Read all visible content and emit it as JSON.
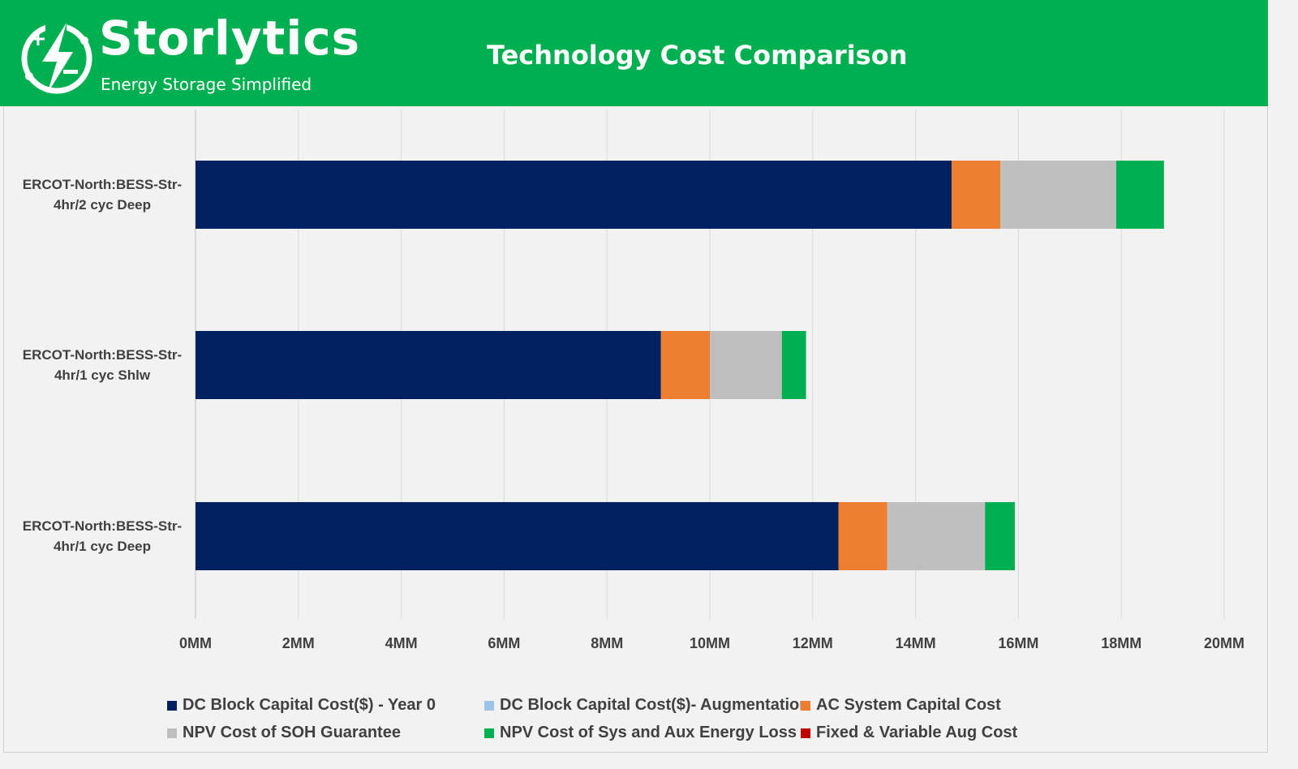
{
  "header": {
    "brand": "Storlytics",
    "tagline": "Energy Storage Simplified",
    "title": "Technology Cost Comparison"
  },
  "colors": {
    "header_bg": "#00b050",
    "plot_bg": "#f2f2f2",
    "grid": "#d9d9d9"
  },
  "chart_data": {
    "type": "bar",
    "orientation": "horizontal",
    "stacked": true,
    "title": "Technology Cost Comparison",
    "categories": [
      "ERCOT-North:BESS-Str-4hr/2 cyc Deep",
      "ERCOT-North:BESS-Str-4hr/1 cyc Shlw",
      "ERCOT-North:BESS-Str-4hr/1 cyc Deep"
    ],
    "category_lines": [
      [
        "ERCOT-North:BESS-Str-",
        "4hr/2 cyc Deep"
      ],
      [
        "ERCOT-North:BESS-Str-",
        "4hr/1 cyc Shlw"
      ],
      [
        "ERCOT-North:BESS-Str-",
        "4hr/1 cyc Deep"
      ]
    ],
    "xlim": [
      0,
      20
    ],
    "x_unit": "MM",
    "x_ticks": [
      0,
      2,
      4,
      6,
      8,
      10,
      12,
      14,
      16,
      18,
      20
    ],
    "x_tick_labels": [
      "0MM",
      "2MM",
      "4MM",
      "6MM",
      "8MM",
      "10MM",
      "12MM",
      "14MM",
      "16MM",
      "18MM",
      "20MM"
    ],
    "grid": true,
    "legend_position": "bottom",
    "series": [
      {
        "name": "DC Block Capital Cost($) - Year 0",
        "color": "#002060",
        "values": [
          14.7,
          9.05,
          12.5
        ]
      },
      {
        "name": "DC Block Capital Cost($)- Augmentation",
        "color": "#9dc3e6",
        "values": [
          0,
          0,
          0
        ]
      },
      {
        "name": "AC System Capital Cost",
        "color": "#ed7d31",
        "values": [
          0.95,
          0.95,
          0.95
        ]
      },
      {
        "name": "NPV Cost of SOH Guarantee",
        "color": "#bfbfbf",
        "values": [
          2.25,
          1.4,
          1.9
        ]
      },
      {
        "name": "NPV Cost of Sys and Aux Energy Loss",
        "color": "#00b050",
        "values": [
          0.93,
          0.47,
          0.58
        ]
      },
      {
        "name": "Fixed & Variable Aug Cost",
        "color": "#c00000",
        "values": [
          0,
          0,
          0
        ]
      }
    ]
  }
}
